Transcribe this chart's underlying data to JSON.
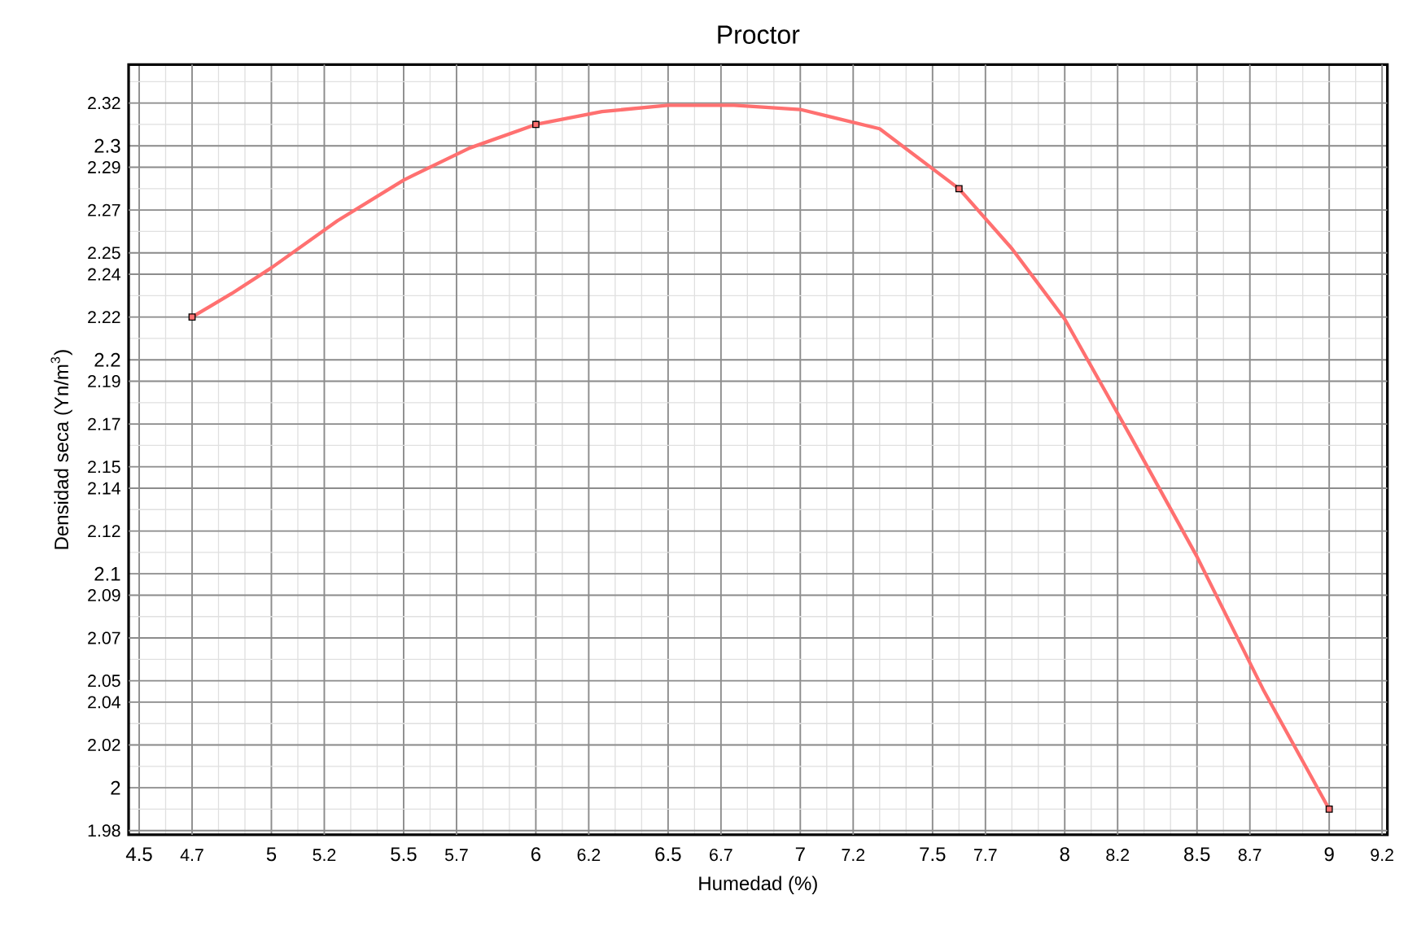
{
  "chart_data": {
    "type": "line",
    "title": "Proctor",
    "xlabel": "Humedad (%)",
    "ylabel": "Densidad seca (Yn/m$^{3}$)",
    "xlim": [
      4.46,
      9.22
    ],
    "ylim": [
      1.978,
      2.338
    ],
    "xticks": [
      4.5,
      4.7,
      5,
      5.2,
      5.5,
      5.7,
      6,
      6.2,
      6.5,
      6.7,
      7,
      7.2,
      7.5,
      7.7,
      8,
      8.2,
      8.5,
      8.7,
      9,
      9.2
    ],
    "yticks": [
      1.98,
      2,
      2.02,
      2.04,
      2.05,
      2.07,
      2.09,
      2.1,
      2.12,
      2.14,
      2.15,
      2.17,
      2.19,
      2.2,
      2.22,
      2.24,
      2.25,
      2.27,
      2.29,
      2.3,
      2.32
    ],
    "grid": true,
    "series": [
      {
        "color": "#ff7070",
        "x": [
          4.7,
          4.85,
          5,
          5.25,
          5.5,
          5.75,
          6,
          6.25,
          6.5,
          6.75,
          7,
          7.3,
          7.6,
          7.8,
          8,
          8.25,
          8.5,
          8.75,
          9
        ],
        "values": [
          2.22,
          2.231,
          2.243,
          2.265,
          2.284,
          2.299,
          2.31,
          2.316,
          2.319,
          2.319,
          2.317,
          2.308,
          2.28,
          2.252,
          2.219,
          2.164,
          2.108,
          2.046,
          1.99
        ]
      },
      {
        "type": "scatter",
        "color": "#000000",
        "marker": "square",
        "x": [
          4.7,
          6,
          7.6,
          9
        ],
        "values": [
          2.22,
          2.31,
          2.28,
          1.99
        ]
      }
    ]
  }
}
